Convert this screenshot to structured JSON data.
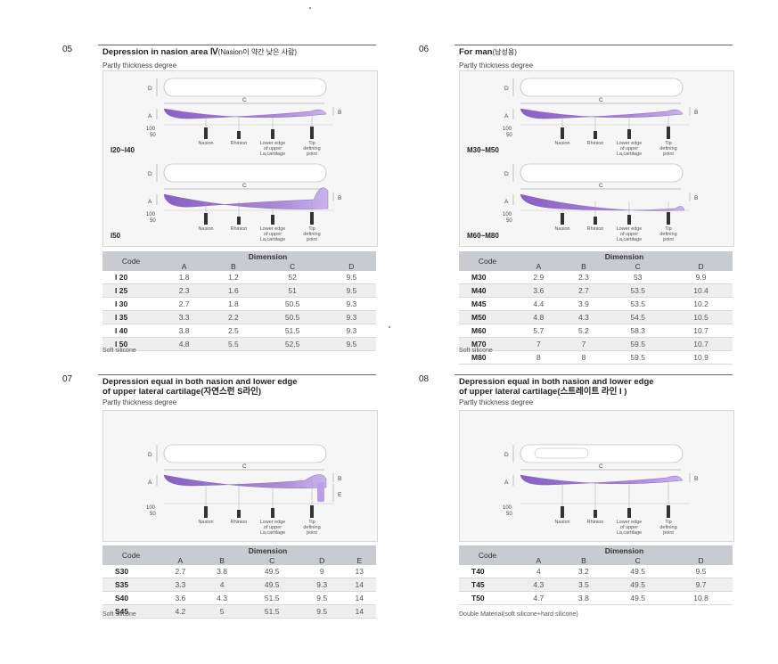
{
  "sections": [
    {
      "num": "05",
      "title": "Depression in nasion area Ⅳ",
      "title_sub": "(Nasion이 약간 낮은 사람)",
      "title2": "",
      "partly": "Partly thickness degree",
      "figures": [
        {
          "range": "I20~I40"
        },
        {
          "range": "I50"
        }
      ],
      "table": {
        "code_hdr": "Code",
        "dim_hdr": "Dimension",
        "cols": [
          "A",
          "B",
          "C",
          "D"
        ],
        "rows": [
          {
            "code": "I 20",
            "vals": [
              "1.8",
              "1.2",
              "52",
              "9.5"
            ]
          },
          {
            "code": "I 25",
            "vals": [
              "2.3",
              "1.6",
              "51",
              "9.5"
            ]
          },
          {
            "code": "I 30",
            "vals": [
              "2.7",
              "1.8",
              "50.5",
              "9.3"
            ]
          },
          {
            "code": "I 35",
            "vals": [
              "3.3",
              "2.2",
              "50.5",
              "9.3"
            ]
          },
          {
            "code": "I 40",
            "vals": [
              "3.8",
              "2.5",
              "51.5",
              "9.3"
            ]
          },
          {
            "code": "I 50",
            "vals": [
              "4.8",
              "5.5",
              "52.5",
              "9.5"
            ]
          }
        ]
      },
      "note": "Soft silicone"
    },
    {
      "num": "06",
      "title": "For man",
      "title_sub": "(남성용)",
      "title2": "",
      "partly": "Partly thickness degree",
      "figures": [
        {
          "range": "M30~M50"
        },
        {
          "range": "M60~M80"
        }
      ],
      "table": {
        "code_hdr": "Code",
        "dim_hdr": "Dimension",
        "cols": [
          "A",
          "B",
          "C",
          "D"
        ],
        "rows": [
          {
            "code": "M30",
            "vals": [
              "2.9",
              "2.3",
              "53",
              "9.9"
            ]
          },
          {
            "code": "M40",
            "vals": [
              "3.6",
              "2.7",
              "53.5",
              "10.4"
            ]
          },
          {
            "code": "M45",
            "vals": [
              "4.4",
              "3.9",
              "53.5",
              "10.2"
            ]
          },
          {
            "code": "M50",
            "vals": [
              "4.8",
              "4.3",
              "54.5",
              "10.5"
            ]
          },
          {
            "code": "M60",
            "vals": [
              "5.7",
              "5.2",
              "58.3",
              "10.7"
            ]
          },
          {
            "code": "M70",
            "vals": [
              "7",
              "7",
              "59.5",
              "10.7"
            ]
          },
          {
            "code": "M80",
            "vals": [
              "8",
              "8",
              "59.5",
              "10.9"
            ]
          }
        ]
      },
      "note": "Soft silicone"
    },
    {
      "num": "07",
      "title": "Depression equal in both nasion and lower edge",
      "title_sub": "",
      "title2": "of upper lateral cartilage(자연스런 S라인)",
      "partly": "Partly thickness degree",
      "figures": [],
      "table": {
        "code_hdr": "Code",
        "dim_hdr": "Dimension",
        "cols": [
          "A",
          "B",
          "C",
          "D",
          "E"
        ],
        "rows": [
          {
            "code": "S30",
            "vals": [
              "2.7",
              "3.8",
              "49.5",
              "9",
              "13"
            ]
          },
          {
            "code": "S35",
            "vals": [
              "3.3",
              "4",
              "49.5",
              "9.3",
              "14"
            ]
          },
          {
            "code": "S40",
            "vals": [
              "3.6",
              "4.3",
              "51.5",
              "9.5",
              "14"
            ]
          },
          {
            "code": "S45",
            "vals": [
              "4.2",
              "5",
              "51.5",
              "9.5",
              "14"
            ]
          }
        ]
      },
      "note": "Soft silicone"
    },
    {
      "num": "08",
      "title": "Depression equal in both nasion and lower edge",
      "title_sub": "",
      "title2": "of upper lateral cartilage(스트레이트 라인 I )",
      "partly": "Partly thickness degree",
      "figures": [],
      "table": {
        "code_hdr": "Code",
        "dim_hdr": "Dimension",
        "cols": [
          "A",
          "B",
          "C",
          "D"
        ],
        "rows": [
          {
            "code": "T40",
            "vals": [
              "4",
              "3.2",
              "49.5",
              "9.5"
            ]
          },
          {
            "code": "T45",
            "vals": [
              "4.3",
              "3.5",
              "49.5",
              "9.7"
            ]
          },
          {
            "code": "T50",
            "vals": [
              "4.7",
              "3.8",
              "49.5",
              "10.8"
            ]
          }
        ]
      },
      "note": "Double Material(soft silicone+hard silicone)"
    }
  ],
  "diagram_labels": {
    "a": "A",
    "b": "B",
    "c": "C",
    "d": "D",
    "e": "E",
    "scale_100": "100",
    "scale_50": "50",
    "nasion": "Nasion",
    "rhinion": "Rhinion",
    "lower_edge": [
      "Lower edge",
      "of upper",
      "La,cartilage"
    ],
    "tip": [
      "Tip",
      "defining",
      "point"
    ]
  },
  "colors": {
    "implant": "#8a5fc4",
    "implant_light": "#c9b4ec",
    "table_header": "#c8ccd1",
    "rule": "#666666"
  }
}
